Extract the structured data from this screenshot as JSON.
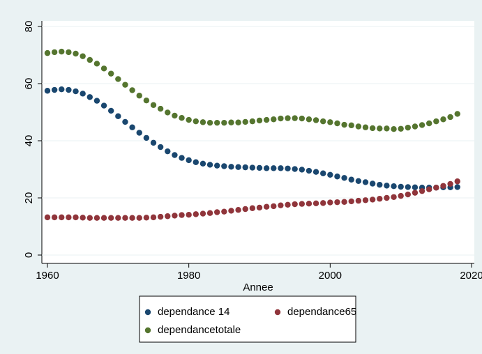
{
  "chart_data": {
    "type": "scatter",
    "x_label": "Annee",
    "x": [
      1960,
      1961,
      1962,
      1963,
      1964,
      1965,
      1966,
      1967,
      1968,
      1969,
      1970,
      1971,
      1972,
      1973,
      1974,
      1975,
      1976,
      1977,
      1978,
      1979,
      1980,
      1981,
      1982,
      1983,
      1984,
      1985,
      1986,
      1987,
      1988,
      1989,
      1990,
      1991,
      1992,
      1993,
      1994,
      1995,
      1996,
      1997,
      1998,
      1999,
      2000,
      2001,
      2002,
      2003,
      2004,
      2005,
      2006,
      2007,
      2008,
      2009,
      2010,
      2011,
      2012,
      2013,
      2014,
      2015,
      2016,
      2017,
      2018
    ],
    "series": [
      {
        "name": "dependance 14",
        "color": "#1a476f",
        "values": [
          57.5,
          57.8,
          58.0,
          57.8,
          57.3,
          56.5,
          55.3,
          54.0,
          52.3,
          50.5,
          48.6,
          46.6,
          44.7,
          42.8,
          41.0,
          39.3,
          37.8,
          36.3,
          35.0,
          34.0,
          33.2,
          32.5,
          32.0,
          31.6,
          31.3,
          31.1,
          30.9,
          30.8,
          30.7,
          30.6,
          30.5,
          30.4,
          30.4,
          30.4,
          30.3,
          30.1,
          29.9,
          29.5,
          29.1,
          28.6,
          28.1,
          27.5,
          27.0,
          26.4,
          25.9,
          25.5,
          25.0,
          24.6,
          24.3,
          24.1,
          23.9,
          23.8,
          23.7,
          23.6,
          23.6,
          23.6,
          23.7,
          23.7,
          23.8
        ]
      },
      {
        "name": "dependance65",
        "color": "#90353b",
        "values": [
          13.2,
          13.2,
          13.2,
          13.2,
          13.2,
          13.1,
          13.0,
          13.0,
          13.0,
          13.0,
          13.0,
          13.0,
          13.0,
          13.0,
          13.1,
          13.2,
          13.4,
          13.6,
          13.8,
          14.0,
          14.1,
          14.3,
          14.5,
          14.7,
          15.0,
          15.2,
          15.5,
          15.8,
          16.1,
          16.4,
          16.6,
          16.9,
          17.1,
          17.4,
          17.6,
          17.8,
          17.9,
          18.0,
          18.1,
          18.2,
          18.4,
          18.5,
          18.6,
          18.8,
          19.0,
          19.2,
          19.4,
          19.7,
          20.0,
          20.3,
          20.7,
          21.2,
          21.8,
          22.4,
          23.0,
          23.6,
          24.2,
          24.9,
          25.8
        ]
      },
      {
        "name": "dependancetotale",
        "color": "#55752f",
        "values": [
          70.7,
          71.0,
          71.2,
          71.0,
          70.5,
          69.6,
          68.3,
          67.0,
          65.3,
          63.5,
          61.6,
          59.6,
          57.7,
          55.8,
          54.1,
          52.5,
          51.2,
          49.9,
          48.8,
          48.0,
          47.3,
          46.8,
          46.5,
          46.3,
          46.3,
          46.3,
          46.4,
          46.4,
          46.6,
          46.8,
          47.1,
          47.3,
          47.5,
          47.8,
          47.9,
          47.9,
          47.8,
          47.5,
          47.2,
          46.8,
          46.5,
          46.1,
          45.6,
          45.4,
          45.0,
          44.7,
          44.4,
          44.3,
          44.3,
          44.1,
          44.2,
          44.6,
          45.0,
          45.5,
          46.1,
          46.8,
          47.5,
          48.3,
          49.4
        ]
      }
    ],
    "xlim": [
      1960,
      2020
    ],
    "xticks": [
      1960,
      1980,
      2000,
      2020
    ],
    "ylim": [
      0,
      80
    ],
    "yticks": [
      0,
      20,
      40,
      60,
      80
    ],
    "grid": true
  }
}
